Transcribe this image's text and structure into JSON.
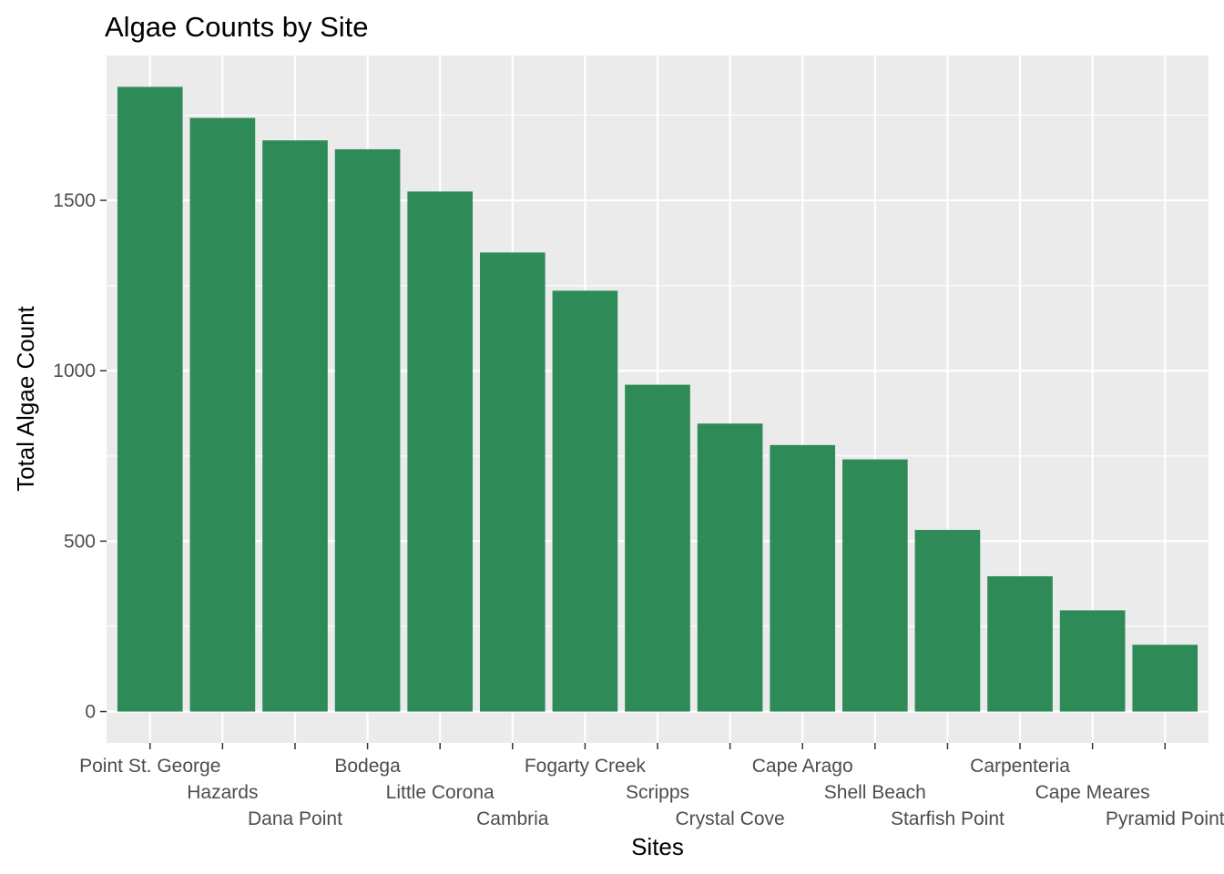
{
  "chart_data": {
    "type": "bar",
    "title": "Algae Counts by Site",
    "xlabel": "Sites",
    "ylabel": "Total Algae Count",
    "categories": [
      "Point St. George",
      "Hazards",
      "Dana Point",
      "Bodega",
      "Little Corona",
      "Cambria",
      "Fogarty Creek",
      "Scripps",
      "Crystal Cove",
      "Cape Arago",
      "Shell Beach",
      "Starfish Point",
      "Carpenteria",
      "Cape Meares",
      "Pyramid Point"
    ],
    "values": [
      1833,
      1742,
      1676,
      1650,
      1526,
      1347,
      1235,
      959,
      845,
      782,
      740,
      533,
      397,
      297,
      196
    ],
    "ylim": [
      -92,
      1925
    ],
    "yticks": [
      0,
      500,
      1000,
      1500
    ],
    "grid": true,
    "bar_color": "#2e8b57",
    "panel_color": "#ebebeb"
  }
}
